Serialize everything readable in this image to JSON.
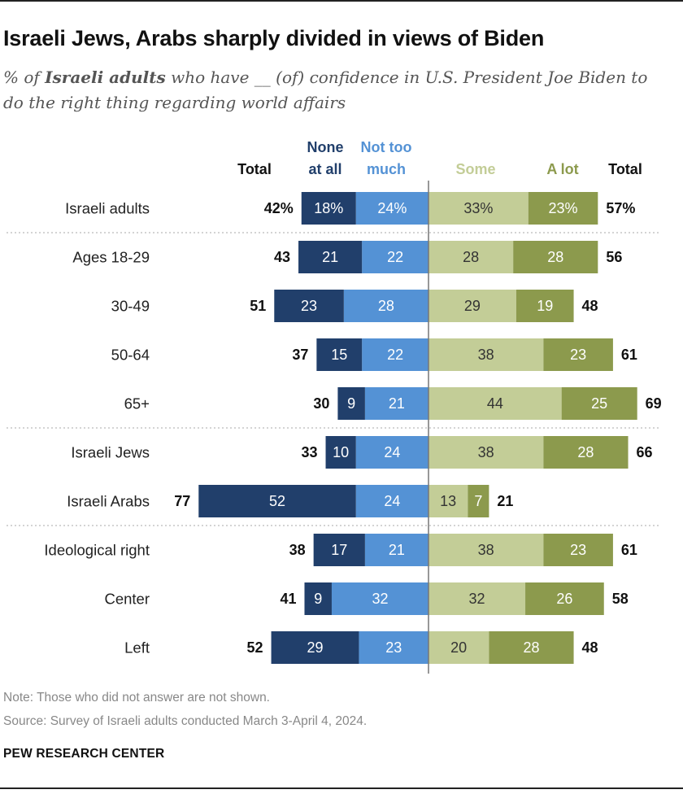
{
  "title": "Israeli Jews, Arabs sharply divided in views of Biden",
  "subtitle": {
    "pre": "% of ",
    "bold": "Israeli adults",
    "post": " who have __ (of) confidence in U.S. President Joe Biden to do the right thing regarding world affairs"
  },
  "note": "Note: Those who did not answer are not shown.",
  "source": "Source: Survey of Israeli adults conducted March 3-April 4, 2024.",
  "brand": "PEW RESEARCH CENTER",
  "colors": {
    "none_at_all": "#213f6b",
    "not_too_much": "#5492d5",
    "some": "#c3cd97",
    "a_lot": "#8c9a4d"
  },
  "chart_data": {
    "type": "bar",
    "orientation": "horizontal",
    "stacked": "diverging",
    "headers": {
      "left_total": "Total",
      "none_at_all": [
        "None",
        "at all"
      ],
      "not_too_much": [
        "Not too",
        "much"
      ],
      "some": "Some",
      "a_lot": "A lot",
      "right_total": "Total"
    },
    "categories": [
      "Israeli adults",
      "Ages 18-29",
      "30-49",
      "50-64",
      "65+",
      "Israeli Jews",
      "Israeli Arabs",
      "Ideological right",
      "Center",
      "Left"
    ],
    "groups_after": [
      0,
      4,
      6
    ],
    "series": [
      {
        "name": "None at all",
        "key": "none_at_all",
        "side": "negative",
        "values": [
          18,
          21,
          23,
          15,
          9,
          10,
          52,
          17,
          9,
          29
        ]
      },
      {
        "name": "Not too much",
        "key": "not_too_much",
        "side": "negative",
        "values": [
          24,
          22,
          28,
          22,
          21,
          24,
          24,
          21,
          32,
          23
        ]
      },
      {
        "name": "Some",
        "key": "some",
        "side": "positive",
        "values": [
          33,
          28,
          29,
          38,
          44,
          38,
          13,
          38,
          32,
          20
        ]
      },
      {
        "name": "A lot",
        "key": "a_lot",
        "side": "positive",
        "values": [
          23,
          28,
          19,
          23,
          25,
          28,
          7,
          23,
          26,
          28
        ]
      }
    ],
    "negative_totals": [
      42,
      43,
      51,
      37,
      30,
      33,
      77,
      38,
      41,
      52
    ],
    "positive_totals": [
      57,
      56,
      48,
      61,
      69,
      66,
      21,
      61,
      58,
      48
    ],
    "first_row_percent": true
  }
}
